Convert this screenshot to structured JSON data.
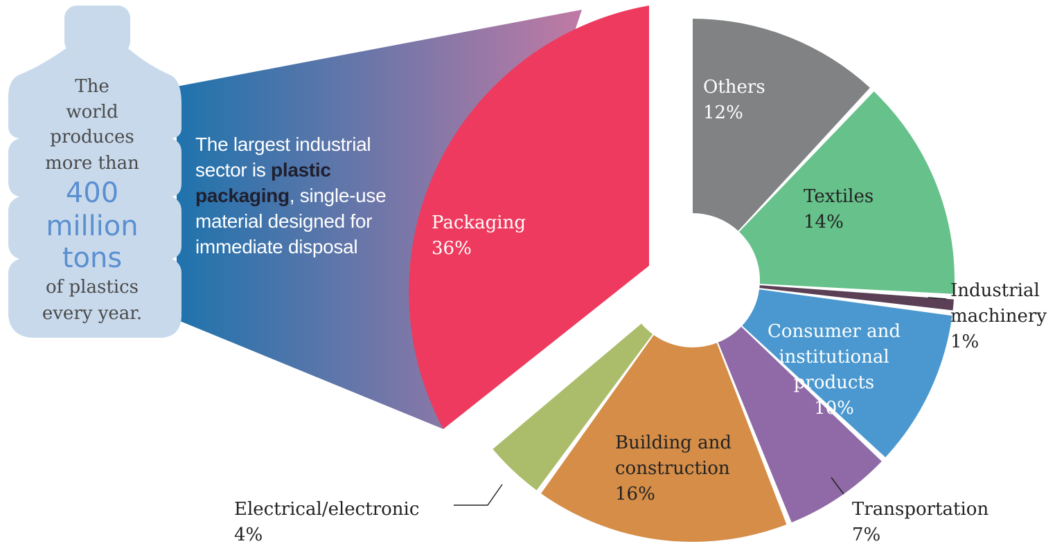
{
  "bottle": {
    "lines_top": [
      "The",
      "world",
      "produces",
      "more than"
    ],
    "lines_big": [
      "400",
      "million",
      "tons"
    ],
    "lines_bottom": [
      "of plastics",
      "every year."
    ]
  },
  "caption": {
    "before": "The largest industrial sector is ",
    "bold": "plastic packaging",
    "after": ", single-use material designed for immediate disposal"
  },
  "colors": {
    "packaging": "#ee3a5e",
    "others": "#808284",
    "textiles": "#66c18a",
    "industrial_machinery": "#5a3f55",
    "consumer": "#4a98cf",
    "transportation": "#8f6aa6",
    "building": "#d58d48",
    "electrical": "#abbd6b",
    "bottle": "#c8d9ec",
    "funnel_start": "#1f73ad",
    "funnel_end": "#c07aa4"
  },
  "chart_data": {
    "type": "pie",
    "variant": "donut-exploded",
    "slices": [
      {
        "name": "Packaging",
        "line1": "Packaging",
        "line2": "",
        "line3": "",
        "value": 36,
        "value_label": "36%",
        "color": "#ee3a5e",
        "label_style": "inside-light",
        "exploded": true
      },
      {
        "name": "Others",
        "line1": "Others",
        "line2": "",
        "line3": "",
        "value": 12,
        "value_label": "12%",
        "color": "#808284",
        "label_style": "inside-light"
      },
      {
        "name": "Textiles",
        "line1": "Textiles",
        "line2": "",
        "line3": "",
        "value": 14,
        "value_label": "14%",
        "color": "#66c18a",
        "label_style": "inside-dark"
      },
      {
        "name": "Industrial machinery",
        "line1": "Industrial",
        "line2": "machinery",
        "line3": "",
        "value": 1,
        "value_label": "1%",
        "color": "#5a3f55",
        "label_style": "outside"
      },
      {
        "name": "Consumer and institutional products",
        "line1": "Consumer and",
        "line2": "institutional",
        "line3": "products",
        "value": 10,
        "value_label": "10%",
        "color": "#4a98cf",
        "label_style": "inside-light"
      },
      {
        "name": "Transportation",
        "line1": "Transportation",
        "line2": "",
        "line3": "",
        "value": 7,
        "value_label": "7%",
        "color": "#8f6aa6",
        "label_style": "outside"
      },
      {
        "name": "Building and construction",
        "line1": "Building and",
        "line2": "construction",
        "line3": "",
        "value": 16,
        "value_label": "16%",
        "color": "#d58d48",
        "label_style": "inside-dark"
      },
      {
        "name": "Electrical/electronic",
        "line1": "Electrical/electronic",
        "line2": "",
        "line3": "",
        "value": 4,
        "value_label": "4%",
        "color": "#abbd6b",
        "label_style": "outside"
      }
    ]
  }
}
